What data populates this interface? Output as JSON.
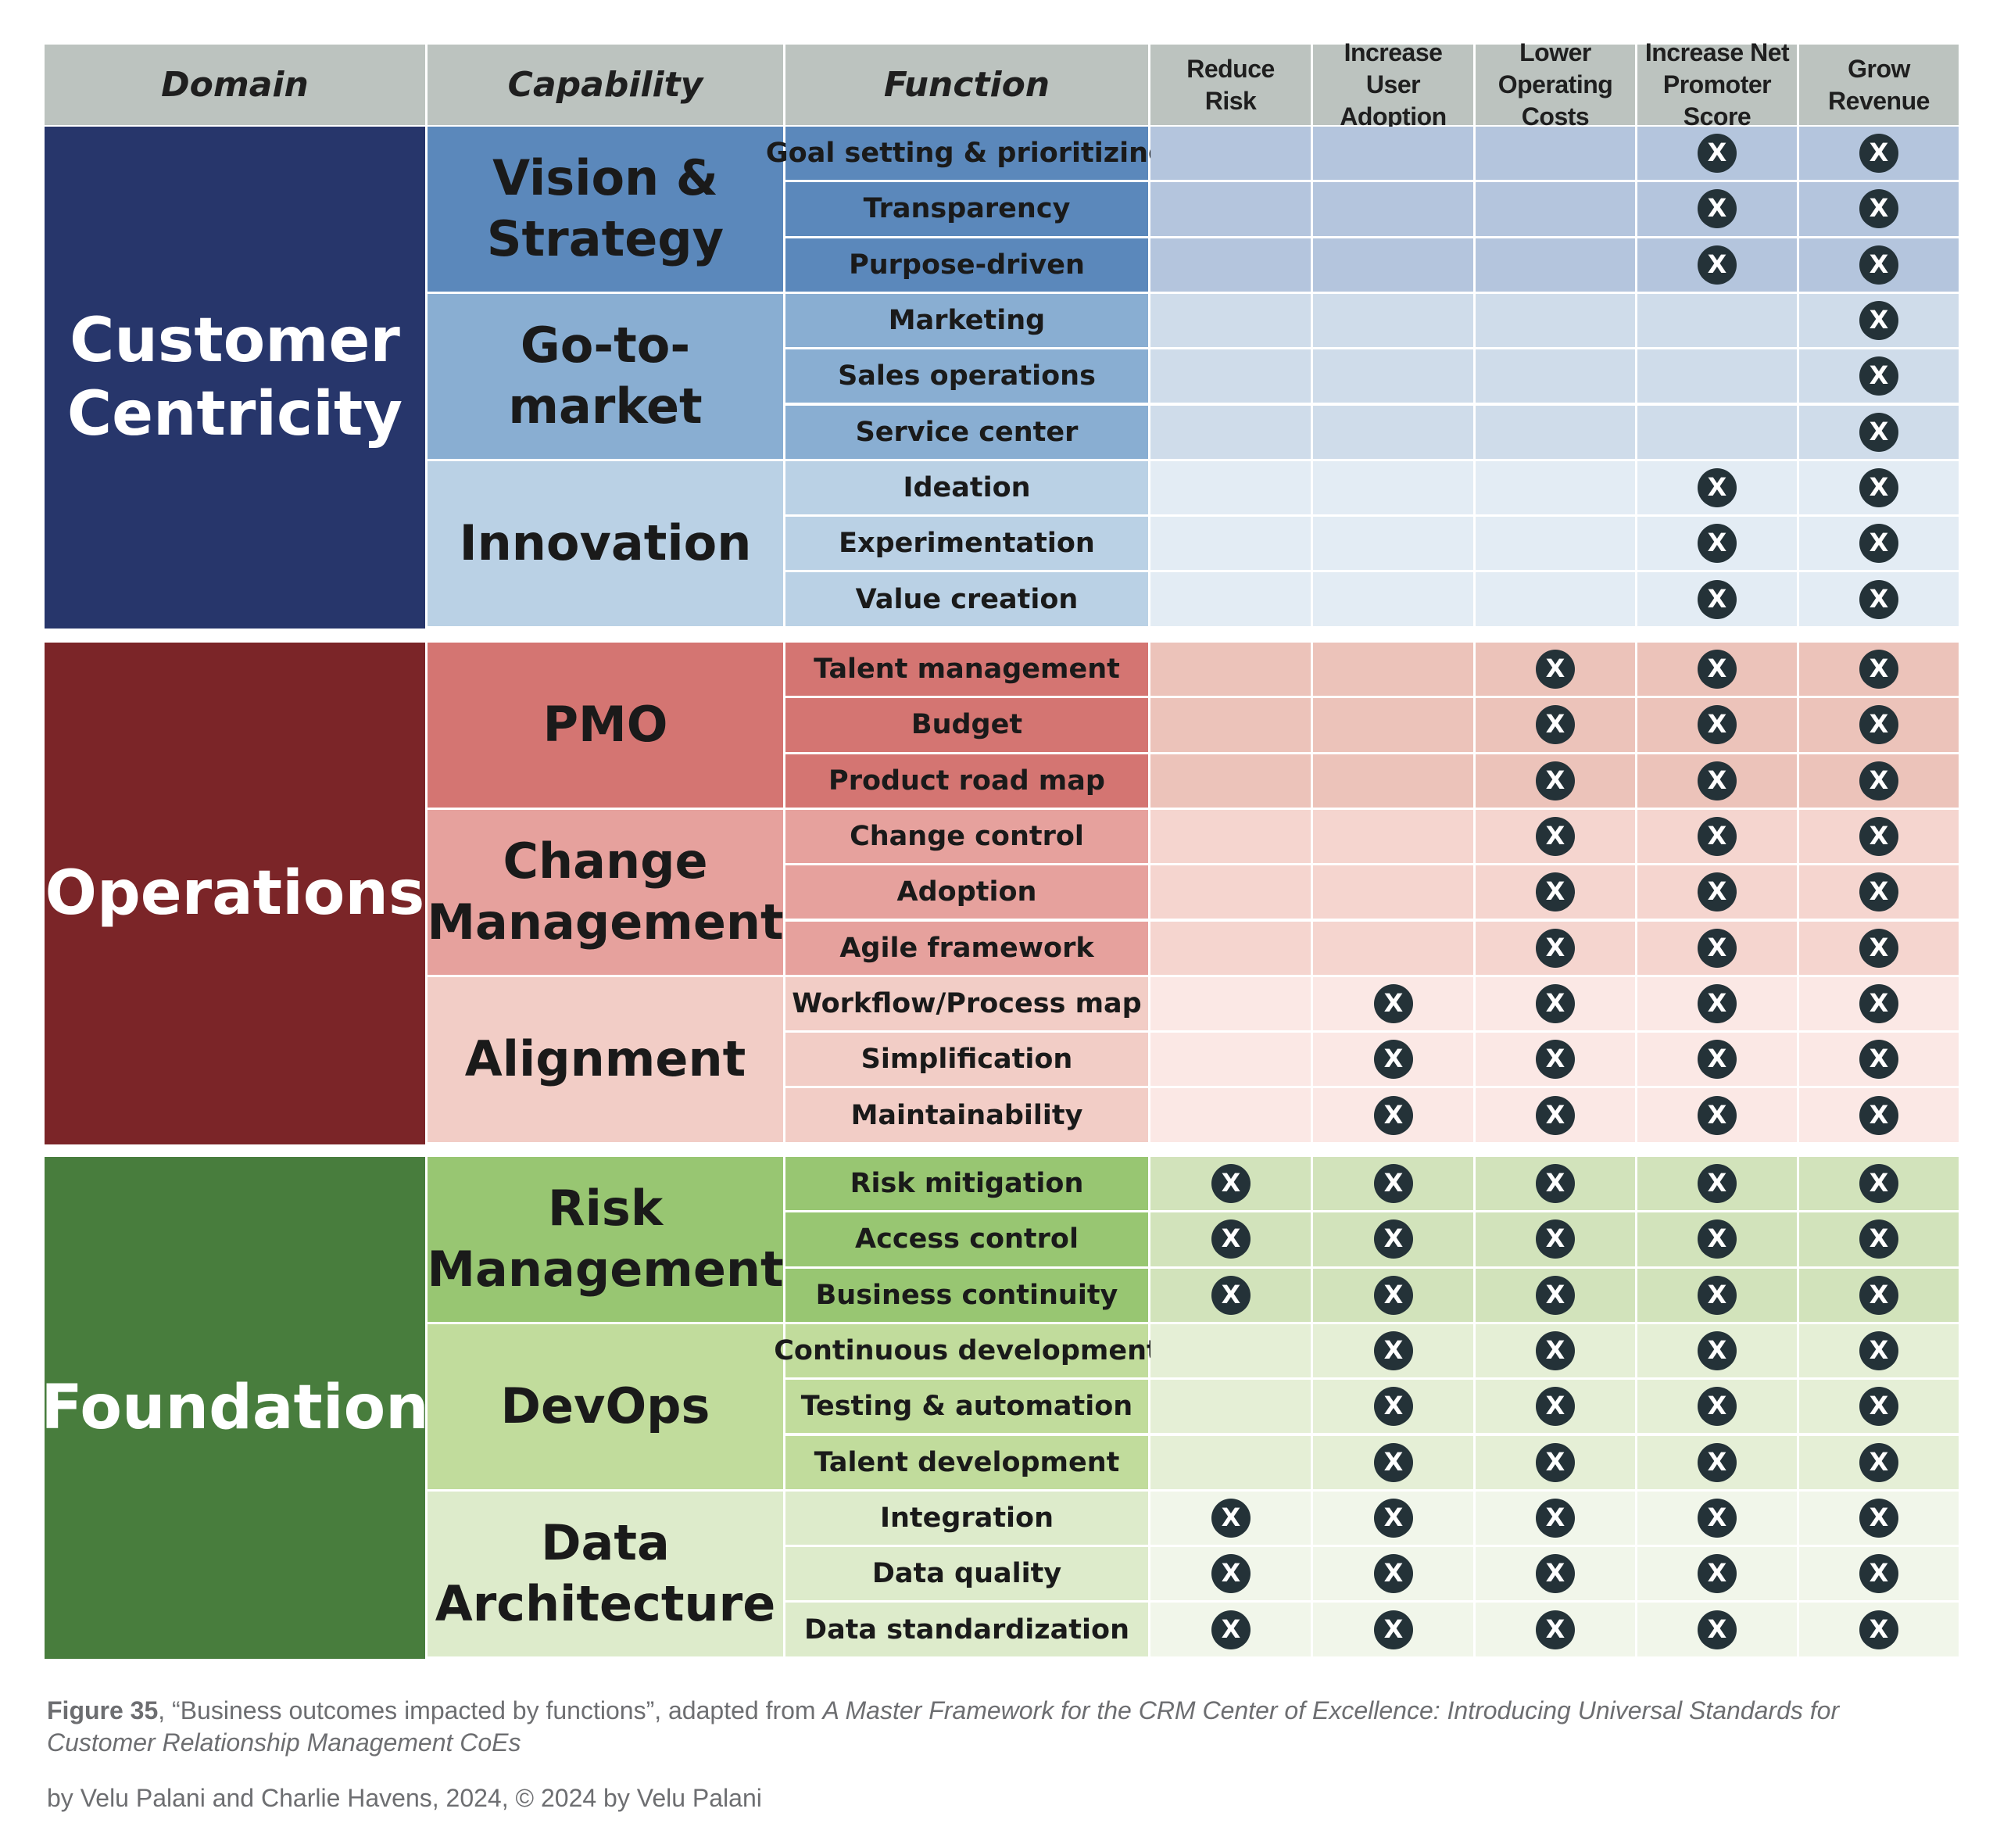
{
  "header": {
    "domain": "Domain",
    "capability": "Capability",
    "function": "Function",
    "outcomes": [
      "Reduce\nRisk",
      "Increase\nUser Adoption",
      "Lower\nOperating Costs",
      "Increase Net\nPromoter Score",
      "Grow\nRevenue"
    ]
  },
  "domains": [
    {
      "name": "Customer\nCentricity",
      "color": "#27366b",
      "capabilities": [
        {
          "name": "Vision &\nStrategy",
          "color": "#5b88bb",
          "func_color": "#5b88bb",
          "cell_color": "#b4c5dd",
          "functions": [
            {
              "name": "Goal setting & prioritizing",
              "marks": [
                0,
                0,
                0,
                1,
                1
              ]
            },
            {
              "name": "Transparency",
              "marks": [
                0,
                0,
                0,
                1,
                1
              ]
            },
            {
              "name": "Purpose-driven",
              "marks": [
                0,
                0,
                0,
                1,
                1
              ]
            }
          ]
        },
        {
          "name": "Go-to-market",
          "color": "#89aed2",
          "func_color": "#89aed2",
          "cell_color": "#cfdcea",
          "functions": [
            {
              "name": "Marketing",
              "marks": [
                0,
                0,
                0,
                0,
                1
              ]
            },
            {
              "name": "Sales operations",
              "marks": [
                0,
                0,
                0,
                0,
                1
              ]
            },
            {
              "name": "Service center",
              "marks": [
                0,
                0,
                0,
                0,
                1
              ]
            }
          ]
        },
        {
          "name": "Innovation",
          "color": "#bad1e5",
          "func_color": "#bad1e5",
          "cell_color": "#e3ecf4",
          "functions": [
            {
              "name": "Ideation",
              "marks": [
                0,
                0,
                0,
                1,
                1
              ]
            },
            {
              "name": "Experimentation",
              "marks": [
                0,
                0,
                0,
                1,
                1
              ]
            },
            {
              "name": "Value creation",
              "marks": [
                0,
                0,
                0,
                1,
                1
              ]
            }
          ]
        }
      ]
    },
    {
      "name": "Operations",
      "color": "#7b2528",
      "capabilities": [
        {
          "name": "PMO",
          "color": "#d47572",
          "func_color": "#d47572",
          "cell_color": "#ecc3ba",
          "functions": [
            {
              "name": "Talent management",
              "marks": [
                0,
                0,
                1,
                1,
                1
              ]
            },
            {
              "name": "Budget",
              "marks": [
                0,
                0,
                1,
                1,
                1
              ]
            },
            {
              "name": "Product road map",
              "marks": [
                0,
                0,
                1,
                1,
                1
              ]
            }
          ]
        },
        {
          "name": "Change\nManagement",
          "color": "#e6a19d",
          "func_color": "#e6a19d",
          "cell_color": "#f5d5cf",
          "functions": [
            {
              "name": "Change control",
              "marks": [
                0,
                0,
                1,
                1,
                1
              ]
            },
            {
              "name": "Adoption",
              "marks": [
                0,
                0,
                1,
                1,
                1
              ]
            },
            {
              "name": "Agile framework",
              "marks": [
                0,
                0,
                1,
                1,
                1
              ]
            }
          ]
        },
        {
          "name": "Alignment",
          "color": "#f2cdc6",
          "func_color": "#f2cdc6",
          "cell_color": "#fbe8e5",
          "functions": [
            {
              "name": "Workflow/Process map",
              "marks": [
                0,
                1,
                1,
                1,
                1
              ]
            },
            {
              "name": "Simplification",
              "marks": [
                0,
                1,
                1,
                1,
                1
              ]
            },
            {
              "name": "Maintainability",
              "marks": [
                0,
                1,
                1,
                1,
                1
              ]
            }
          ]
        }
      ]
    },
    {
      "name": "Foundation",
      "color": "#487d3d",
      "capabilities": [
        {
          "name": "Risk\nManagement",
          "color": "#98c672",
          "func_color": "#98c672",
          "cell_color": "#d2e3bb",
          "functions": [
            {
              "name": "Risk mitigation",
              "marks": [
                1,
                1,
                1,
                1,
                1
              ]
            },
            {
              "name": "Access control",
              "marks": [
                1,
                1,
                1,
                1,
                1
              ]
            },
            {
              "name": "Business continuity",
              "marks": [
                1,
                1,
                1,
                1,
                1
              ]
            }
          ]
        },
        {
          "name": "DevOps",
          "color": "#c1dc9c",
          "func_color": "#c1dc9c",
          "cell_color": "#e5efd6",
          "functions": [
            {
              "name": "Continuous development",
              "marks": [
                0,
                1,
                1,
                1,
                1
              ]
            },
            {
              "name": "Testing & automation",
              "marks": [
                0,
                1,
                1,
                1,
                1
              ]
            },
            {
              "name": "Talent development",
              "marks": [
                0,
                1,
                1,
                1,
                1
              ]
            }
          ]
        },
        {
          "name": "Data\nArchitecture",
          "color": "#ddebcb",
          "func_color": "#ddebcb",
          "cell_color": "#f1f6ea",
          "functions": [
            {
              "name": "Integration",
              "marks": [
                1,
                1,
                1,
                1,
                1
              ]
            },
            {
              "name": "Data quality",
              "marks": [
                1,
                1,
                1,
                1,
                1
              ]
            },
            {
              "name": "Data standardization",
              "marks": [
                1,
                1,
                1,
                1,
                1
              ]
            }
          ]
        }
      ]
    }
  ],
  "mark_symbol": "X",
  "mark_color": "#243238",
  "caption": {
    "figure_label": "Figure 35",
    "title_text": ", “Business outcomes impacted by functions”, adapted from ",
    "book_title": "A Master Framework for the CRM Center of Excellence: Introducing Universal Standards for Customer Relationship Management CoEs",
    "credit": "by Velu Palani and Charlie Havens, 2024, © 2024 by Velu Palani"
  }
}
